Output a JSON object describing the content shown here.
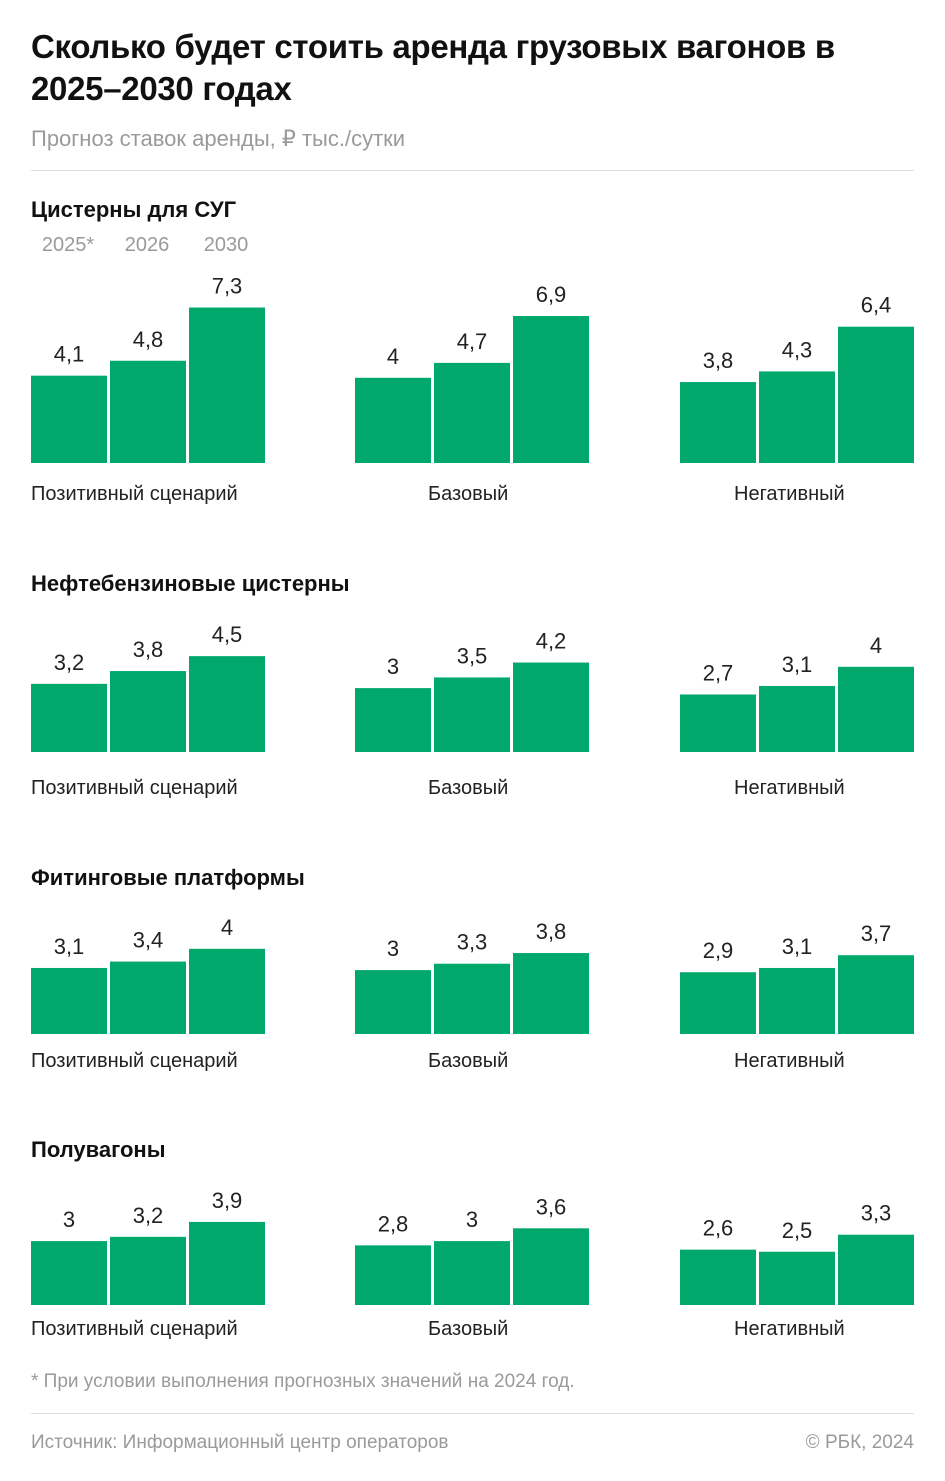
{
  "title": "Сколько будет стоить аренда грузовых вагонов в 2025–2030 годах",
  "subtitle": "Прогноз ставок аренды, ₽ тыс./сутки",
  "colors": {
    "bar": "#00a86b"
  },
  "years": [
    "2025*",
    "2026",
    "2030"
  ],
  "scenarios": [
    "Позитивный сценарий",
    "Базовый",
    "Негативный"
  ],
  "chart_data": [
    {
      "type": "bar",
      "title": "Цистерны для СУГ",
      "categories": [
        "Позитивный сценарий",
        "Базовый",
        "Негативный"
      ],
      "series": [
        {
          "name": "2025*",
          "values": [
            4.1,
            4,
            3.8
          ]
        },
        {
          "name": "2026",
          "values": [
            4.8,
            4.7,
            4.3
          ]
        },
        {
          "name": "2030",
          "values": [
            7.3,
            6.9,
            6.4
          ]
        }
      ],
      "value_labels": [
        [
          "4,1",
          "4,8",
          "7,3"
        ],
        [
          "4",
          "4,7",
          "6,9"
        ],
        [
          "3,8",
          "4,3",
          "6,4"
        ]
      ]
    },
    {
      "type": "bar",
      "title": "Нефтебензиновые цистерны",
      "categories": [
        "Позитивный сценарий",
        "Базовый",
        "Негативный"
      ],
      "series": [
        {
          "name": "2025*",
          "values": [
            3.2,
            3,
            2.7
          ]
        },
        {
          "name": "2026",
          "values": [
            3.8,
            3.5,
            3.1
          ]
        },
        {
          "name": "2030",
          "values": [
            4.5,
            4.2,
            4
          ]
        }
      ],
      "value_labels": [
        [
          "3,2",
          "3,8",
          "4,5"
        ],
        [
          "3",
          "3,5",
          "4,2"
        ],
        [
          "2,7",
          "3,1",
          "4"
        ]
      ]
    },
    {
      "type": "bar",
      "title": "Фитинговые платформы",
      "categories": [
        "Позитивный сценарий",
        "Базовый",
        "Негативный"
      ],
      "series": [
        {
          "name": "2025*",
          "values": [
            3.1,
            3,
            2.9
          ]
        },
        {
          "name": "2026",
          "values": [
            3.4,
            3.3,
            3.1
          ]
        },
        {
          "name": "2030",
          "values": [
            4,
            3.8,
            3.7
          ]
        }
      ],
      "value_labels": [
        [
          "3,1",
          "3,4",
          "4"
        ],
        [
          "3",
          "3,3",
          "3,8"
        ],
        [
          "2,9",
          "3,1",
          "3,7"
        ]
      ]
    },
    {
      "type": "bar",
      "title": "Полувагоны",
      "categories": [
        "Позитивный сценарий",
        "Базовый",
        "Негативный"
      ],
      "series": [
        {
          "name": "2025*",
          "values": [
            3,
            2.8,
            2.6
          ]
        },
        {
          "name": "2026",
          "values": [
            3.2,
            3,
            2.5
          ]
        },
        {
          "name": "2030",
          "values": [
            3.9,
            3.6,
            3.3
          ]
        }
      ],
      "value_labels": [
        [
          "3",
          "3,2",
          "3,9"
        ],
        [
          "2,8",
          "3",
          "3,6"
        ],
        [
          "2,6",
          "2,5",
          "3,3"
        ]
      ]
    }
  ],
  "footnote": "* При условии выполнения прогнозных значений на 2024 год.",
  "source": "Источник: Информационный центр операторов",
  "copyright": "© РБК, 2024"
}
